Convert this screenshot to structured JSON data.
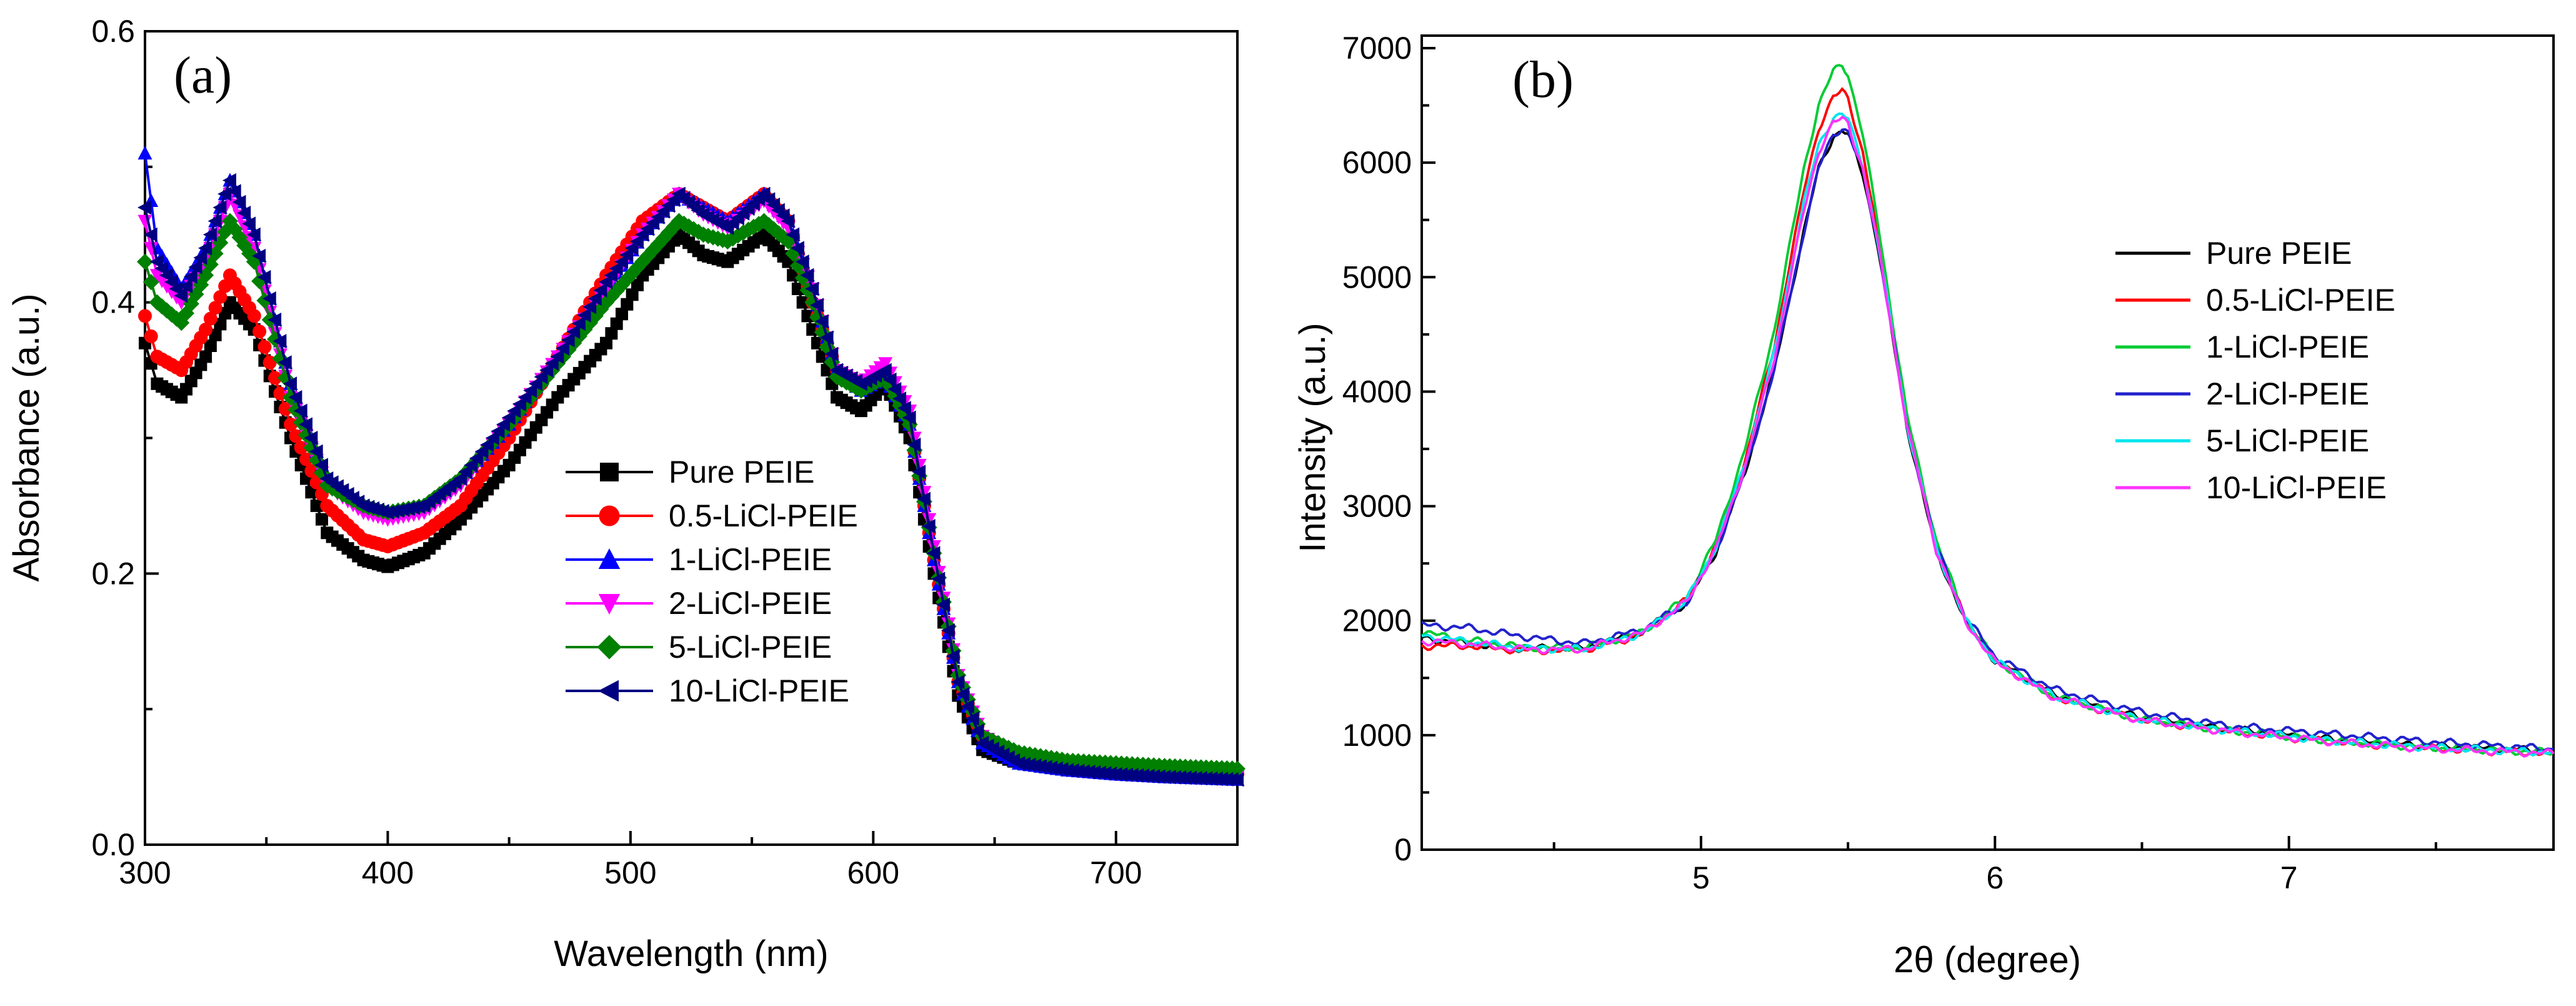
{
  "chart_data": [
    {
      "type": "line",
      "panel_label": "(a)",
      "title": "",
      "xlabel": "Wavelength (nm)",
      "ylabel": "Absorbance (a.u.)",
      "xlim": [
        300,
        750
      ],
      "ylim": [
        0.0,
        0.6
      ],
      "xticks": [
        "300",
        "400",
        "500",
        "600",
        "700"
      ],
      "yticks": [
        "0.0",
        "0.2",
        "0.4",
        "0.6"
      ],
      "legend_position": "center",
      "series": [
        {
          "name": "Pure PEIE",
          "color": "#000000",
          "marker": "square",
          "x": [
            300,
            305,
            315,
            325,
            335,
            345,
            360,
            375,
            390,
            400,
            415,
            430,
            450,
            470,
            490,
            505,
            520,
            530,
            540,
            555,
            565,
            575,
            585,
            595,
            605,
            615,
            625,
            635,
            645,
            660,
            680,
            700,
            720,
            750
          ],
          "y": [
            0.37,
            0.34,
            0.33,
            0.36,
            0.4,
            0.38,
            0.3,
            0.23,
            0.21,
            0.205,
            0.215,
            0.24,
            0.28,
            0.33,
            0.37,
            0.42,
            0.45,
            0.435,
            0.43,
            0.45,
            0.43,
            0.38,
            0.33,
            0.32,
            0.34,
            0.3,
            0.2,
            0.11,
            0.07,
            0.06,
            0.055,
            0.055,
            0.052,
            0.05
          ]
        },
        {
          "name": "0.5-LiCl-PEIE",
          "color": "#ff0000",
          "marker": "circle",
          "x": [
            300,
            305,
            315,
            325,
            335,
            345,
            360,
            375,
            390,
            400,
            415,
            430,
            450,
            470,
            490,
            505,
            520,
            530,
            540,
            555,
            565,
            575,
            585,
            595,
            605,
            615,
            625,
            635,
            645,
            660,
            680,
            700,
            720,
            750
          ],
          "y": [
            0.39,
            0.36,
            0.35,
            0.38,
            0.42,
            0.39,
            0.31,
            0.25,
            0.225,
            0.22,
            0.23,
            0.25,
            0.3,
            0.36,
            0.42,
            0.46,
            0.48,
            0.47,
            0.46,
            0.48,
            0.46,
            0.4,
            0.35,
            0.34,
            0.35,
            0.31,
            0.21,
            0.12,
            0.08,
            0.065,
            0.06,
            0.058,
            0.055,
            0.052
          ]
        },
        {
          "name": "1-LiCl-PEIE",
          "color": "#0000ff",
          "marker": "triangle-up",
          "x": [
            300,
            305,
            315,
            325,
            335,
            345,
            360,
            375,
            390,
            400,
            415,
            430,
            450,
            470,
            490,
            505,
            520,
            530,
            540,
            555,
            565,
            575,
            585,
            595,
            605,
            615,
            625,
            635,
            645,
            660,
            680,
            700,
            720,
            750
          ],
          "y": [
            0.51,
            0.44,
            0.41,
            0.44,
            0.49,
            0.45,
            0.34,
            0.27,
            0.25,
            0.245,
            0.25,
            0.27,
            0.31,
            0.36,
            0.41,
            0.45,
            0.48,
            0.47,
            0.46,
            0.48,
            0.46,
            0.41,
            0.35,
            0.335,
            0.345,
            0.31,
            0.21,
            0.12,
            0.075,
            0.06,
            0.055,
            0.052,
            0.05,
            0.048
          ]
        },
        {
          "name": "2-LiCl-PEIE",
          "color": "#ff00ff",
          "marker": "triangle-down",
          "x": [
            300,
            305,
            315,
            325,
            335,
            345,
            360,
            375,
            390,
            400,
            415,
            430,
            450,
            470,
            490,
            505,
            520,
            530,
            540,
            555,
            565,
            575,
            585,
            595,
            605,
            615,
            625,
            635,
            645,
            660,
            680,
            700,
            720,
            750
          ],
          "y": [
            0.46,
            0.42,
            0.4,
            0.43,
            0.48,
            0.44,
            0.33,
            0.265,
            0.245,
            0.24,
            0.245,
            0.265,
            0.31,
            0.36,
            0.41,
            0.45,
            0.48,
            0.465,
            0.455,
            0.475,
            0.455,
            0.41,
            0.35,
            0.34,
            0.355,
            0.32,
            0.22,
            0.125,
            0.08,
            0.065,
            0.058,
            0.055,
            0.052,
            0.05
          ]
        },
        {
          "name": "5-LiCl-PEIE",
          "color": "#008000",
          "marker": "diamond",
          "x": [
            300,
            305,
            315,
            325,
            335,
            345,
            360,
            375,
            390,
            400,
            415,
            430,
            450,
            470,
            490,
            505,
            520,
            530,
            540,
            555,
            565,
            575,
            585,
            595,
            605,
            615,
            625,
            635,
            645,
            660,
            680,
            700,
            720,
            750
          ],
          "y": [
            0.43,
            0.4,
            0.385,
            0.42,
            0.46,
            0.43,
            0.33,
            0.265,
            0.25,
            0.245,
            0.25,
            0.27,
            0.31,
            0.355,
            0.4,
            0.43,
            0.46,
            0.45,
            0.445,
            0.46,
            0.445,
            0.4,
            0.345,
            0.335,
            0.345,
            0.31,
            0.215,
            0.125,
            0.08,
            0.068,
            0.062,
            0.06,
            0.058,
            0.056
          ]
        },
        {
          "name": "10-LiCl-PEIE",
          "color": "#000080",
          "marker": "triangle-left",
          "x": [
            300,
            305,
            315,
            325,
            335,
            345,
            360,
            375,
            390,
            400,
            415,
            430,
            450,
            470,
            490,
            505,
            520,
            530,
            540,
            555,
            565,
            575,
            585,
            595,
            605,
            615,
            625,
            635,
            645,
            660,
            680,
            700,
            720,
            750
          ],
          "y": [
            0.47,
            0.43,
            0.405,
            0.44,
            0.49,
            0.45,
            0.34,
            0.27,
            0.25,
            0.245,
            0.25,
            0.27,
            0.315,
            0.36,
            0.415,
            0.45,
            0.48,
            0.465,
            0.455,
            0.48,
            0.46,
            0.41,
            0.35,
            0.34,
            0.35,
            0.315,
            0.215,
            0.12,
            0.075,
            0.06,
            0.055,
            0.052,
            0.05,
            0.048
          ]
        }
      ]
    },
    {
      "type": "line",
      "panel_label": "(b)",
      "title": "",
      "xlabel": "2θ (degree)",
      "ylabel": "Intensity (a.u.)",
      "xlim": [
        4.05,
        7.9
      ],
      "ylim": [
        0,
        7000
      ],
      "xticks": [
        "5",
        "6",
        "7"
      ],
      "yticks": [
        "0",
        "1000",
        "2000",
        "3000",
        "4000",
        "5000",
        "6000",
        "7000"
      ],
      "legend_position": "top-right",
      "series": [
        {
          "name": "Pure PEIE",
          "color": "#000000",
          "x": [
            4.05,
            4.2,
            4.4,
            4.6,
            4.8,
            4.95,
            5.05,
            5.15,
            5.25,
            5.3,
            5.35,
            5.4,
            5.45,
            5.48,
            5.5,
            5.55,
            5.6,
            5.65,
            5.7,
            5.8,
            5.9,
            6.0,
            6.2,
            6.5,
            6.8,
            7.0,
            7.2,
            7.5,
            7.9
          ],
          "y": [
            1850,
            1800,
            1760,
            1760,
            1900,
            2150,
            2600,
            3300,
            4200,
            4800,
            5400,
            5950,
            6230,
            6280,
            6250,
            5900,
            5300,
            4500,
            3700,
            2600,
            2000,
            1650,
            1350,
            1150,
            1050,
            1000,
            950,
            900,
            860
          ]
        },
        {
          "name": "0.5-LiCl-PEIE",
          "color": "#ff0000",
          "x": [
            4.05,
            4.2,
            4.4,
            4.6,
            4.8,
            4.95,
            5.05,
            5.15,
            5.25,
            5.3,
            5.35,
            5.4,
            5.45,
            5.48,
            5.5,
            5.55,
            5.6,
            5.65,
            5.7,
            5.8,
            5.9,
            6.0,
            6.2,
            6.5,
            6.8,
            7.0,
            7.2,
            7.5,
            7.9
          ],
          "y": [
            1780,
            1780,
            1740,
            1740,
            1880,
            2180,
            2650,
            3400,
            4400,
            5100,
            5750,
            6300,
            6580,
            6620,
            6550,
            6100,
            5400,
            4600,
            3750,
            2650,
            2000,
            1650,
            1330,
            1130,
            1030,
            980,
            930,
            880,
            840
          ]
        },
        {
          "name": "1-LiCl-PEIE",
          "color": "#00cc33",
          "x": [
            4.05,
            4.2,
            4.4,
            4.6,
            4.8,
            4.95,
            5.05,
            5.15,
            5.25,
            5.3,
            5.35,
            5.4,
            5.45,
            5.48,
            5.5,
            5.55,
            5.6,
            5.65,
            5.7,
            5.8,
            5.9,
            6.0,
            6.2,
            6.5,
            6.8,
            7.0,
            7.2,
            7.5,
            7.9
          ],
          "y": [
            1900,
            1830,
            1770,
            1760,
            1900,
            2200,
            2700,
            3500,
            4550,
            5250,
            5950,
            6500,
            6800,
            6850,
            6780,
            6250,
            5500,
            4650,
            3800,
            2700,
            2020,
            1660,
            1340,
            1140,
            1040,
            990,
            940,
            890,
            850
          ]
        },
        {
          "name": "2-LiCl-PEIE",
          "color": "#2222cc",
          "x": [
            4.05,
            4.2,
            4.4,
            4.6,
            4.8,
            4.95,
            5.05,
            5.15,
            5.25,
            5.3,
            5.35,
            5.4,
            5.45,
            5.48,
            5.5,
            5.55,
            5.6,
            5.65,
            5.7,
            5.8,
            5.9,
            6.0,
            6.2,
            6.5,
            6.8,
            7.0,
            7.2,
            7.5,
            7.9
          ],
          "y": [
            1960,
            1940,
            1860,
            1800,
            1920,
            2150,
            2600,
            3300,
            4200,
            4800,
            5400,
            5950,
            6250,
            6300,
            6270,
            5920,
            5320,
            4530,
            3720,
            2650,
            2030,
            1690,
            1400,
            1200,
            1080,
            1040,
            1000,
            940,
            880
          ]
        },
        {
          "name": "5-LiCl-PEIE",
          "color": "#00e5ee",
          "x": [
            4.05,
            4.2,
            4.4,
            4.6,
            4.8,
            4.95,
            5.05,
            5.15,
            5.25,
            5.3,
            5.35,
            5.4,
            5.45,
            5.48,
            5.5,
            5.55,
            5.6,
            5.65,
            5.7,
            5.8,
            5.9,
            6.0,
            6.2,
            6.5,
            6.8,
            7.0,
            7.2,
            7.5,
            7.9
          ],
          "y": [
            1870,
            1820,
            1760,
            1750,
            1890,
            2170,
            2640,
            3380,
            4350,
            5000,
            5650,
            6150,
            6400,
            6420,
            6380,
            5980,
            5330,
            4540,
            3720,
            2630,
            2000,
            1650,
            1340,
            1140,
            1040,
            990,
            940,
            890,
            850
          ]
        },
        {
          "name": "10-LiCl-PEIE",
          "color": "#ff33ff",
          "x": [
            4.05,
            4.2,
            4.4,
            4.6,
            4.8,
            4.95,
            5.05,
            5.15,
            5.25,
            5.3,
            5.35,
            5.4,
            5.45,
            5.48,
            5.5,
            5.55,
            5.6,
            5.65,
            5.7,
            5.8,
            5.9,
            6.0,
            6.2,
            6.5,
            6.8,
            7.0,
            7.2,
            7.5,
            7.9
          ],
          "y": [
            1820,
            1800,
            1750,
            1750,
            1890,
            2160,
            2620,
            3350,
            4300,
            4950,
            5580,
            6100,
            6350,
            6380,
            6340,
            5950,
            5310,
            4530,
            3710,
            2620,
            1990,
            1640,
            1330,
            1130,
            1030,
            980,
            930,
            880,
            840
          ]
        }
      ]
    }
  ]
}
